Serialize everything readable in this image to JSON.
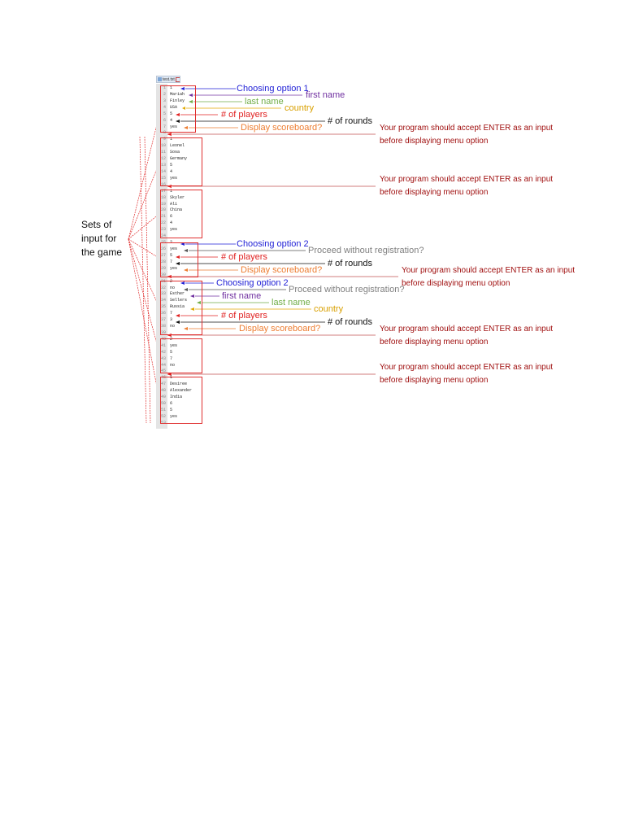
{
  "editor": {
    "tab_label": "test.txt",
    "lines": [
      {
        "n": "1",
        "t": "1"
      },
      {
        "n": "2",
        "t": "Mariah"
      },
      {
        "n": "3",
        "t": "Finley"
      },
      {
        "n": "4",
        "t": "USA"
      },
      {
        "n": "5",
        "t": "5"
      },
      {
        "n": "6",
        "t": "4"
      },
      {
        "n": "7",
        "t": "yes"
      },
      {
        "n": "8",
        "t": ""
      },
      {
        "n": "9",
        "t": "1"
      },
      {
        "n": "10",
        "t": "Leonel"
      },
      {
        "n": "11",
        "t": "Sosa"
      },
      {
        "n": "12",
        "t": "Germany"
      },
      {
        "n": "13",
        "t": "5"
      },
      {
        "n": "14",
        "t": "4"
      },
      {
        "n": "15",
        "t": "yes"
      },
      {
        "n": "16",
        "t": ""
      },
      {
        "n": "17",
        "t": "1"
      },
      {
        "n": "18",
        "t": "Skyler"
      },
      {
        "n": "19",
        "t": "Ali"
      },
      {
        "n": "20",
        "t": "China"
      },
      {
        "n": "21",
        "t": "6"
      },
      {
        "n": "22",
        "t": "4"
      },
      {
        "n": "23",
        "t": "yes"
      },
      {
        "n": "24",
        "t": ""
      },
      {
        "n": "25",
        "t": "2"
      },
      {
        "n": "26",
        "t": "yes"
      },
      {
        "n": "27",
        "t": "5"
      },
      {
        "n": "28",
        "t": "7"
      },
      {
        "n": "29",
        "t": "yes"
      },
      {
        "n": "30",
        "t": ""
      },
      {
        "n": "31",
        "t": "2"
      },
      {
        "n": "32",
        "t": "no"
      },
      {
        "n": "33",
        "t": "Esther"
      },
      {
        "n": "34",
        "t": "Sellers"
      },
      {
        "n": "35",
        "t": "Russia"
      },
      {
        "n": "36",
        "t": "7"
      },
      {
        "n": "37",
        "t": "3"
      },
      {
        "n": "38",
        "t": "no"
      },
      {
        "n": "39",
        "t": ""
      },
      {
        "n": "40",
        "t": "2"
      },
      {
        "n": "41",
        "t": "yes"
      },
      {
        "n": "42",
        "t": "5"
      },
      {
        "n": "43",
        "t": "7"
      },
      {
        "n": "44",
        "t": "no"
      },
      {
        "n": "45",
        "t": ""
      },
      {
        "n": "46",
        "t": "1"
      },
      {
        "n": "47",
        "t": "Desiree"
      },
      {
        "n": "48",
        "t": "Alexander"
      },
      {
        "n": "49",
        "t": "India"
      },
      {
        "n": "50",
        "t": "6"
      },
      {
        "n": "51",
        "t": "5"
      },
      {
        "n": "52",
        "t": "yes"
      },
      {
        "n": "53",
        "t": ""
      }
    ]
  },
  "side_label": {
    "line1": "Sets of",
    "line2": "input for",
    "line3": "the game"
  },
  "annotations": {
    "set1": {
      "choosing": "Choosing option 1",
      "first_name": "first name",
      "last_name": "last name",
      "country": "country",
      "players": "# of players",
      "rounds": "# of rounds",
      "scoreboard": "Display scoreboard?"
    },
    "set4": {
      "choosing": "Choosing option 2",
      "proceed": "Proceed without registration?",
      "players": "# of players",
      "rounds": "# of rounds",
      "scoreboard": "Display scoreboard?"
    },
    "set5": {
      "choosing": "Choosing option 2",
      "proceed": "Proceed without registration?",
      "first_name": "first name",
      "last_name": "last name",
      "country": "country",
      "players": "# of players",
      "rounds": "# of rounds",
      "scoreboard": "Display scoreboard?"
    },
    "enter_note": {
      "line1": "Your program should accept ENTER as an input",
      "line2": "before displaying menu option"
    }
  },
  "colors": {
    "blue": "#1f1fd6",
    "purple": "#7030a0",
    "green": "#70ad47",
    "yellow": "#e0a800",
    "red": "#e02020",
    "black": "#111111",
    "orange": "#ed7d31",
    "gray": "#7f7f7f",
    "darkred": "#a01010"
  }
}
